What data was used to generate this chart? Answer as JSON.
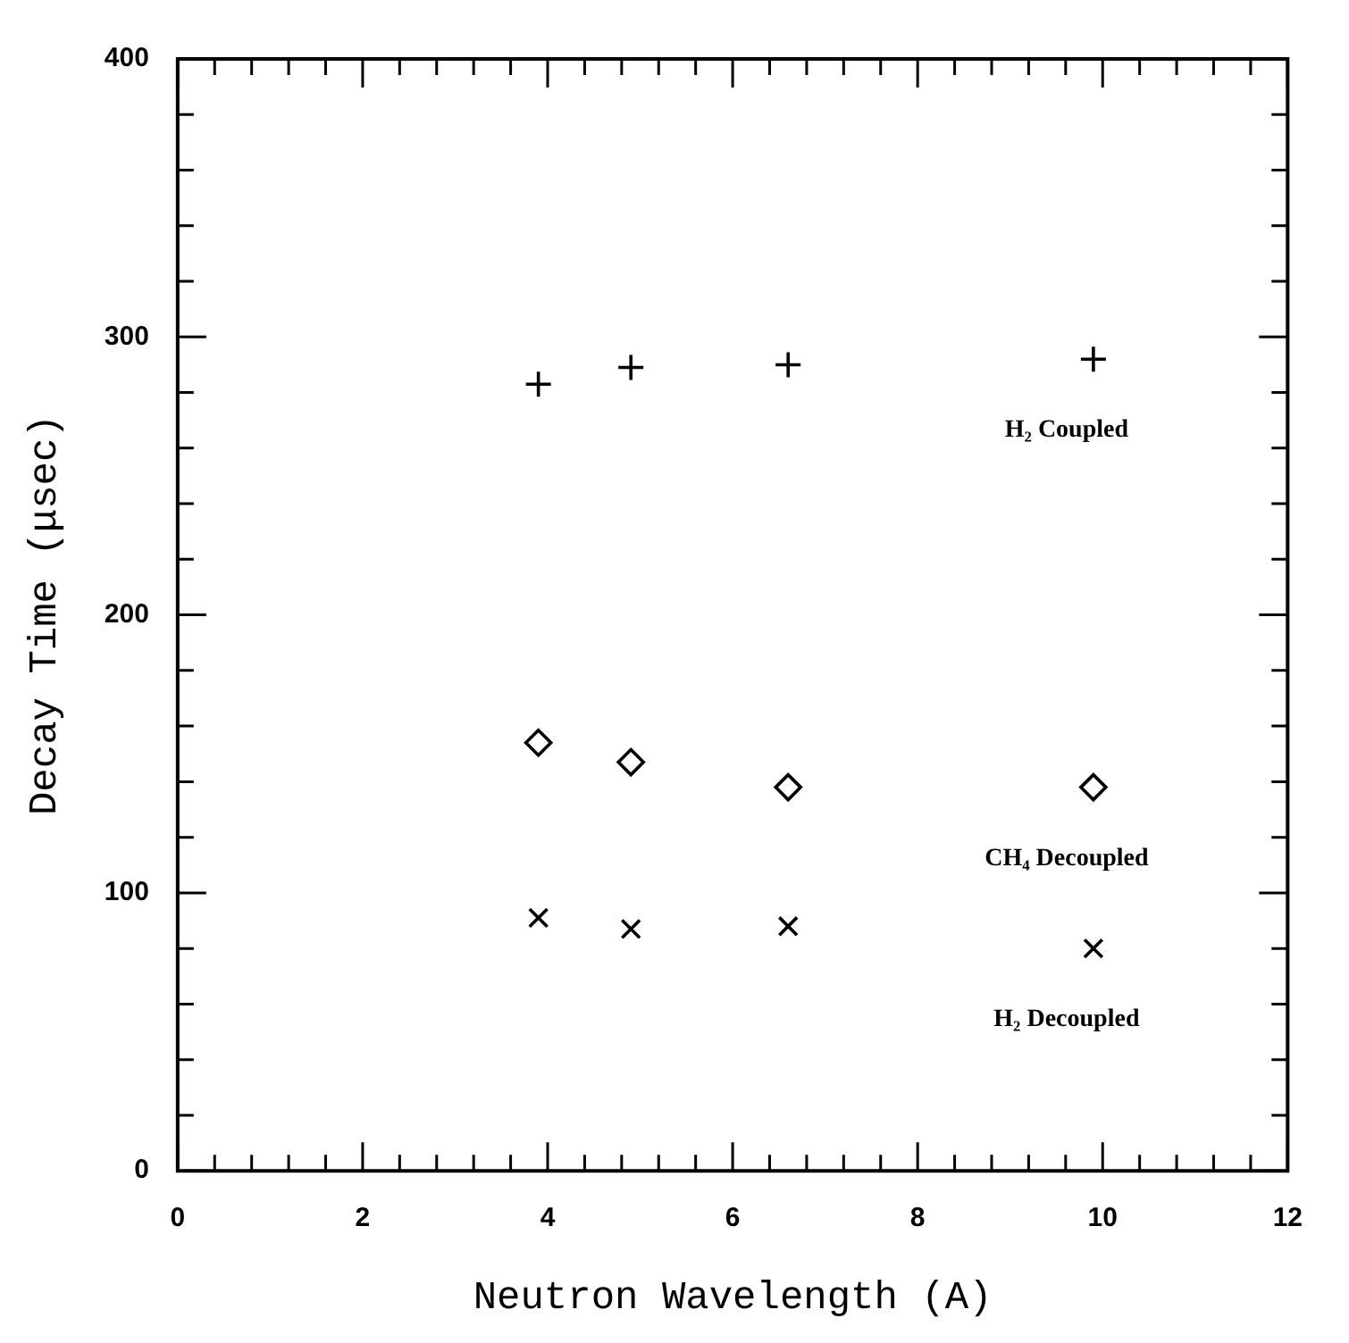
{
  "chart_data": {
    "type": "scatter",
    "xlabel": "Neutron Wavelength (A)",
    "ylabel": "Decay Time (μsec)",
    "xlim": [
      0,
      12
    ],
    "xticks": [
      0,
      2,
      4,
      6,
      8,
      10,
      12
    ],
    "ylim": [
      0,
      400
    ],
    "yticks": [
      0,
      100,
      200,
      300,
      400
    ],
    "grid": false,
    "legend": false,
    "series": [
      {
        "name": "H₂ Coupled",
        "color": "#000000",
        "marker": "plus",
        "x": [
          3.9,
          4.9,
          6.6,
          9.9
        ],
        "values": [
          283,
          289,
          290,
          292
        ]
      },
      {
        "name": "CH₄ Decoupled",
        "color": "#000000",
        "marker": "diamond",
        "x": [
          3.9,
          4.9,
          6.6,
          9.9
        ],
        "values": [
          154,
          147,
          138,
          138
        ]
      },
      {
        "name": "H₂ Decoupled",
        "color": "#000000",
        "marker": "cross",
        "x": [
          3.9,
          4.9,
          6.6,
          9.9
        ],
        "values": [
          91,
          87,
          88,
          80
        ]
      }
    ]
  }
}
